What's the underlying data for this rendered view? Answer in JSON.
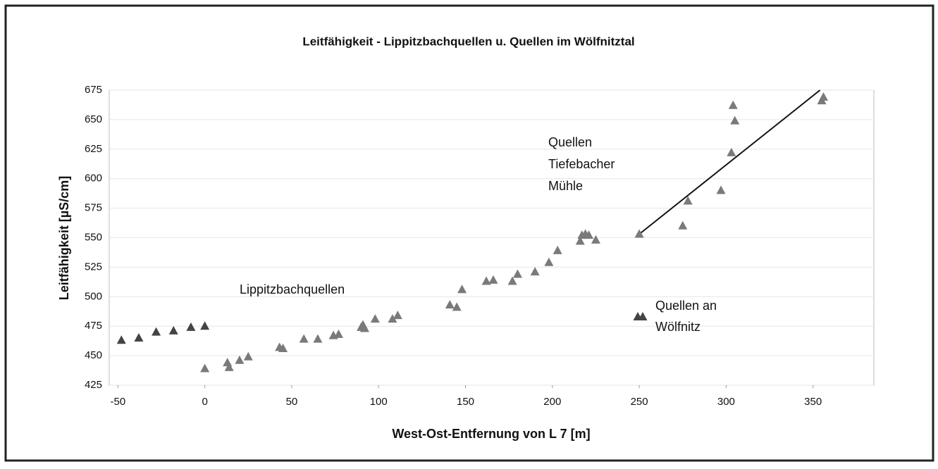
{
  "chart_data": {
    "type": "scatter",
    "title": "Leitfähigkeit - Lippitzbachquellen u. Quellen im Wölfnitztal",
    "x_label": "West-Ost-Entfernung von L 7 [m]",
    "y_label": "Leitfähigkeit [µS/cm]",
    "xlim": [
      -55,
      385
    ],
    "xticks": [
      -50,
      0,
      50,
      100,
      150,
      200,
      250,
      300,
      350
    ],
    "ylim": [
      425,
      675
    ],
    "yticks": [
      425,
      450,
      475,
      500,
      525,
      550,
      575,
      600,
      625,
      650,
      675
    ],
    "grid": true,
    "series": [
      {
        "label": [
          "Lippitzbachquellen"
        ],
        "color": "#7a7a7a",
        "x": [
          0,
          13,
          14,
          20,
          25,
          43,
          45,
          57,
          65,
          74,
          77,
          90,
          91,
          92,
          98,
          108,
          111,
          141,
          145,
          148,
          162,
          166,
          177,
          180,
          190,
          198,
          203,
          216,
          217,
          219,
          221,
          225
        ],
        "values": [
          439,
          444,
          440,
          446,
          449,
          457,
          456,
          464,
          464,
          467,
          468,
          474,
          476,
          473,
          481,
          481,
          484,
          493,
          491,
          506,
          513,
          514,
          513,
          519,
          521,
          529,
          539,
          547,
          552,
          553,
          552,
          548
        ]
      },
      {
        "label": [
          "Quellen",
          "Tiefebacher",
          "Mühle"
        ],
        "color": "#7a7a7a",
        "x": [
          250,
          275,
          278,
          297,
          303,
          304,
          305,
          355,
          356
        ],
        "values": [
          553,
          560,
          581,
          590,
          622,
          662,
          649,
          666,
          669
        ]
      },
      {
        "label": [
          "Quellen an",
          "Wölfnitz"
        ],
        "color": "#444444",
        "x": [
          -48,
          -38,
          -28,
          -18,
          -8,
          0
        ],
        "values": [
          463,
          465,
          470,
          471,
          474,
          475
        ]
      }
    ],
    "trendline": {
      "color": "#111111",
      "x": [
        250,
        354
      ],
      "values": [
        553,
        675
      ]
    }
  }
}
